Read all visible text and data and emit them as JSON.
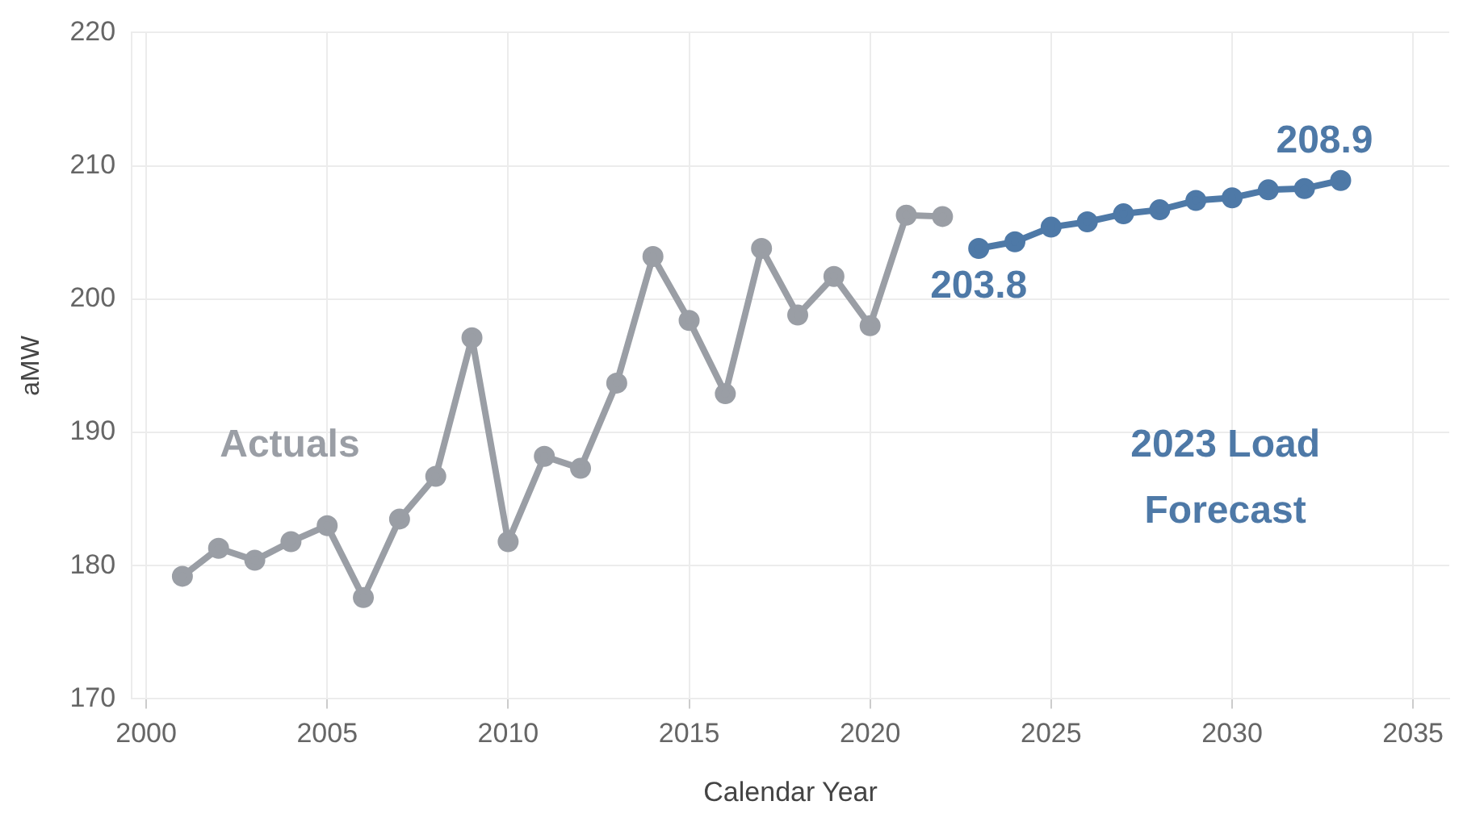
{
  "chart_data": {
    "type": "line",
    "xlabel": "Calendar Year",
    "ylabel": "aMW",
    "xlim": [
      1999.6,
      2036
    ],
    "xticks": [
      2000,
      2005,
      2010,
      2015,
      2020,
      2025,
      2030,
      2035
    ],
    "ylim": [
      170,
      220
    ],
    "yticks": [
      170,
      180,
      190,
      200,
      210,
      220
    ],
    "grid": true,
    "legend": false,
    "marker": "circle",
    "line_style": "solid",
    "series": [
      {
        "name": "Actuals",
        "color": "#9a9ea5",
        "x": [
          2001,
          2002,
          2003,
          2004,
          2005,
          2006,
          2007,
          2008,
          2009,
          2010,
          2011,
          2012,
          2013,
          2014,
          2015,
          2016,
          2017,
          2018,
          2019,
          2020,
          2021,
          2022
        ],
        "values": [
          179.2,
          181.3,
          180.4,
          181.8,
          183.0,
          177.6,
          183.5,
          186.7,
          197.1,
          181.8,
          188.2,
          187.3,
          193.7,
          203.2,
          198.4,
          192.9,
          203.8,
          198.8,
          201.7,
          198.0,
          206.3,
          206.2
        ]
      },
      {
        "name": "2023 Load Forecast",
        "color": "#4e79a7",
        "x": [
          2023,
          2024,
          2025,
          2026,
          2027,
          2028,
          2029,
          2030,
          2031,
          2032,
          2033
        ],
        "values": [
          203.8,
          204.3,
          205.4,
          205.8,
          206.4,
          206.7,
          207.4,
          207.6,
          208.2,
          208.3,
          208.9
        ],
        "value_labels": [
          "203.8",
          null,
          null,
          null,
          null,
          null,
          null,
          null,
          null,
          null,
          "208.9"
        ]
      }
    ]
  }
}
